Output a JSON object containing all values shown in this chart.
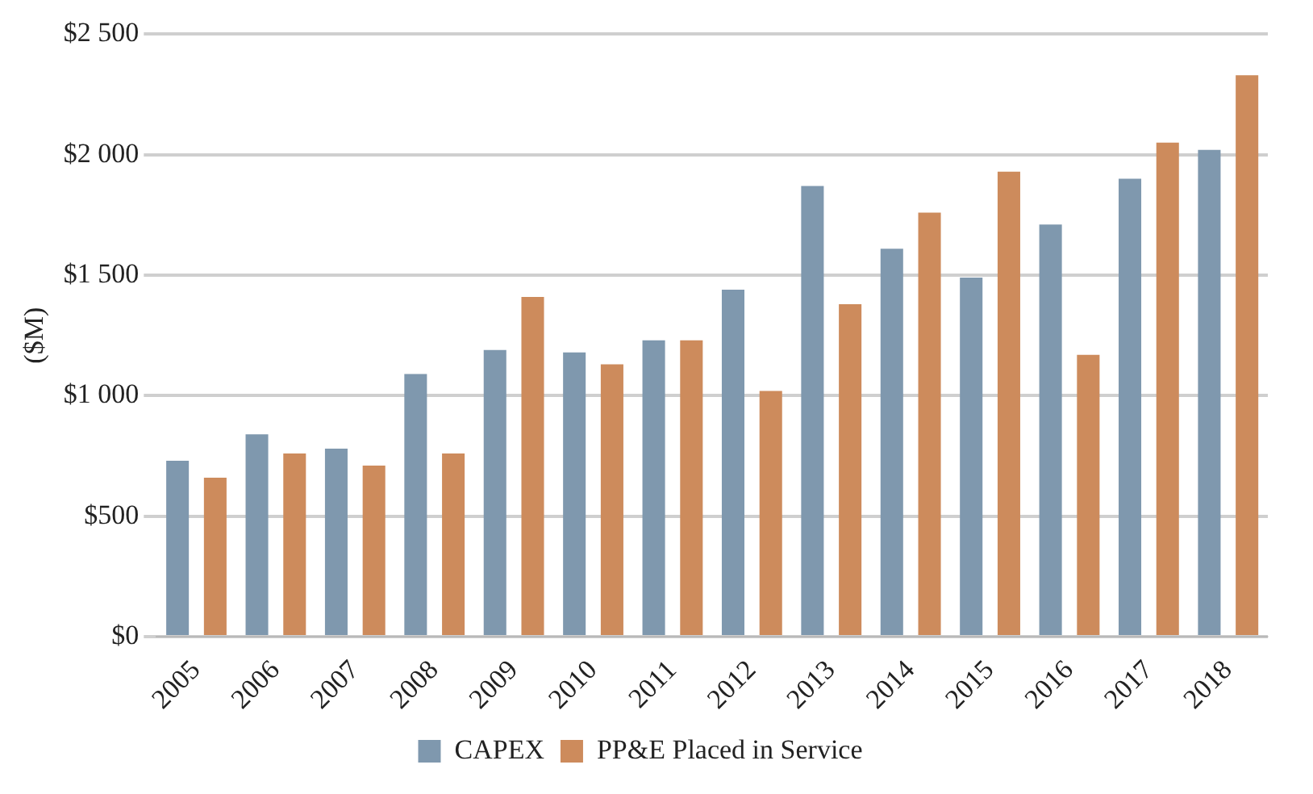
{
  "chart_data": {
    "type": "bar",
    "ylabel": "($M)",
    "categories": [
      "2005",
      "2006",
      "2007",
      "2008",
      "2009",
      "2010",
      "2011",
      "2012",
      "2013",
      "2014",
      "2015",
      "2016",
      "2017",
      "2018"
    ],
    "series": [
      {
        "name": "CAPEX",
        "color": "#7f98ae",
        "values": [
          730,
          840,
          780,
          1090,
          1190,
          1180,
          1230,
          1440,
          1870,
          1610,
          1490,
          1710,
          1900,
          2020
        ]
      },
      {
        "name": "PP&E Placed in Service",
        "color": "#cd8b5c",
        "values": [
          660,
          760,
          710,
          760,
          1410,
          1130,
          1230,
          1020,
          1380,
          1760,
          1930,
          1170,
          2050,
          2330
        ]
      }
    ],
    "ylim": [
      0,
      2500
    ],
    "yticks": [
      {
        "value": 0,
        "label": "$0"
      },
      {
        "value": 500,
        "label": "$500"
      },
      {
        "value": 1000,
        "label": "$1 000"
      },
      {
        "value": 1500,
        "label": "$1 500"
      },
      {
        "value": 2000,
        "label": "$2 000"
      },
      {
        "value": 2500,
        "label": "$2 500"
      }
    ],
    "grid": "y",
    "legend": "bottom"
  }
}
